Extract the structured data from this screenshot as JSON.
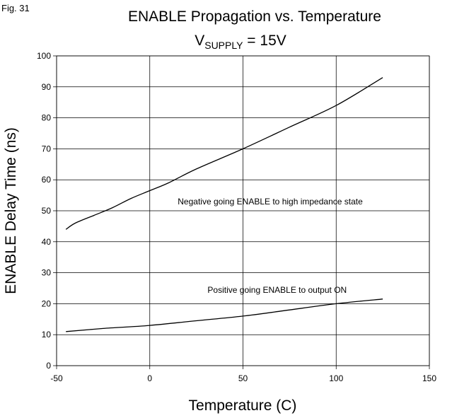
{
  "figure_label": "Fig. 31",
  "chart_data": {
    "type": "line",
    "title": "ENABLE Propagation vs. Temperature",
    "subtitle": {
      "prefix": "V",
      "subscript": "SUPPLY",
      "suffix": " = 15V"
    },
    "xlabel": "Temperature (C)",
    "ylabel": "ENABLE Delay Time (ns)",
    "xlim": [
      -50,
      150
    ],
    "ylim": [
      0,
      100
    ],
    "x_ticks": [
      -50,
      0,
      50,
      100,
      150
    ],
    "y_ticks": [
      0,
      10,
      20,
      30,
      40,
      50,
      60,
      70,
      80,
      90,
      100
    ],
    "grid": true,
    "legend": "none",
    "series": [
      {
        "x": [
          -45,
          -40,
          -30,
          -20,
          -10,
          0,
          10,
          25,
          50,
          75,
          100,
          125
        ],
        "y": [
          44,
          46,
          48.5,
          51,
          54,
          56.5,
          59,
          63.5,
          70,
          77,
          84,
          93
        ]
      },
      {
        "x": [
          -45,
          -25,
          0,
          25,
          50,
          75,
          100,
          125
        ],
        "y": [
          11,
          12,
          13,
          14.5,
          16,
          18,
          20,
          21.5
        ]
      }
    ],
    "annotations": [
      {
        "text": "Negative going ENABLE to high impedance state",
        "x": 15,
        "y": 52
      },
      {
        "text": "Positive going ENABLE to output ON",
        "x": 31,
        "y": 23.5
      }
    ]
  }
}
